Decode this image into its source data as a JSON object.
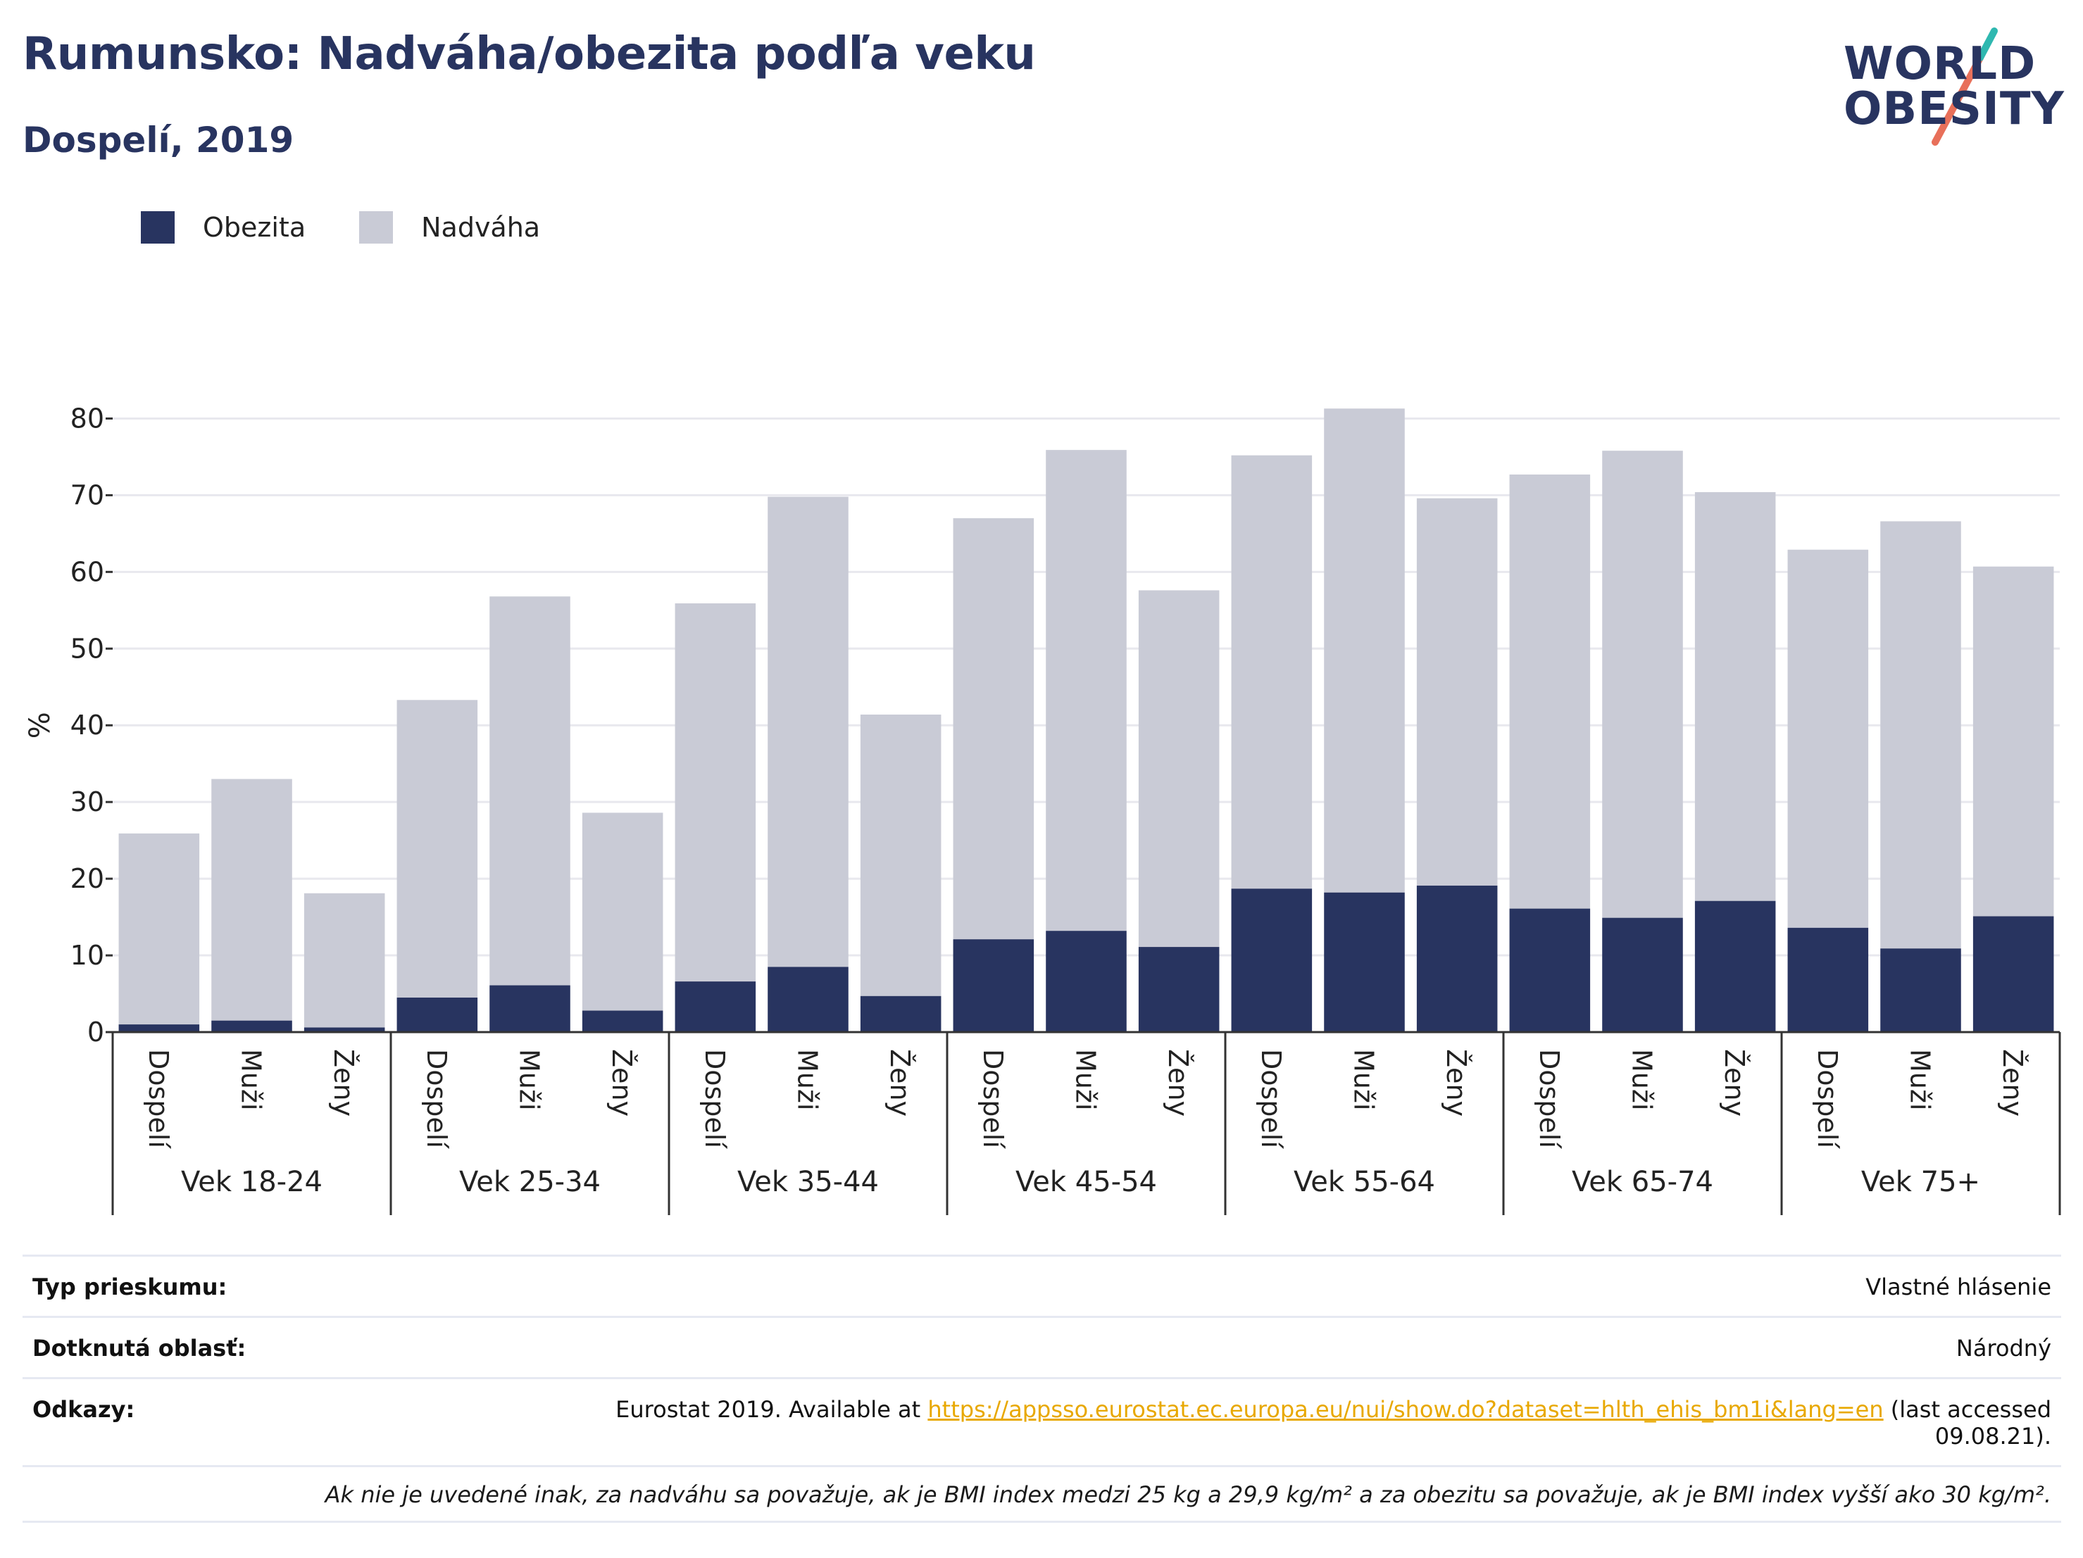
{
  "header": {
    "title": "Rumunsko: Nadváha/obezita podľa veku",
    "subtitle": "Dospelí, 2019"
  },
  "logo": {
    "line1": "WORLD",
    "line2": "OBESITY"
  },
  "colors": {
    "obesity": "#283460",
    "overweight": "#c9cbd6",
    "title": "#283460",
    "link": "#e8a800"
  },
  "legend": [
    {
      "label": "Obezita",
      "color": "#283460"
    },
    {
      "label": "Nadváha",
      "color": "#c9cbd6"
    }
  ],
  "chart_data": {
    "type": "bar",
    "stacked": true,
    "ylabel": "%",
    "ylim": [
      0,
      85
    ],
    "yticks": [
      0,
      10,
      20,
      30,
      40,
      50,
      60,
      70,
      80
    ],
    "grid": true,
    "legend_position": "top-left",
    "groups": [
      "Vek 18-24",
      "Vek 25-34",
      "Vek 35-44",
      "Vek 45-54",
      "Vek 55-64",
      "Vek 65-74",
      "Vek 75+"
    ],
    "categories": [
      "Dospelí",
      "Muži",
      "Ženy"
    ],
    "series": [
      {
        "name": "Obezita",
        "values": [
          [
            1.0,
            1.5,
            0.6
          ],
          [
            4.5,
            6.1,
            2.8
          ],
          [
            6.6,
            8.5,
            4.7
          ],
          [
            12.1,
            13.2,
            11.1
          ],
          [
            18.7,
            18.2,
            19.1
          ],
          [
            16.1,
            14.9,
            17.1
          ],
          [
            13.6,
            10.9,
            15.1
          ]
        ]
      },
      {
        "name": "Nadváha",
        "totals": [
          [
            25.9,
            33.0,
            18.1
          ],
          [
            43.3,
            56.8,
            28.6
          ],
          [
            55.9,
            69.8,
            41.4
          ],
          [
            67.0,
            75.9,
            57.6
          ],
          [
            75.2,
            81.3,
            69.6
          ],
          [
            72.7,
            75.8,
            70.4
          ],
          [
            62.9,
            66.6,
            60.7
          ]
        ]
      }
    ]
  },
  "info": {
    "survey_type_label": "Typ prieskumu:",
    "survey_type_value": "Vlastné hlásenie",
    "area_label": "Dotknutá oblasť:",
    "area_value": "Národný",
    "refs_label": "Odkazy:",
    "refs_prefix": "Eurostat 2019. Available at ",
    "refs_link": "https://appsso.eurostat.ec.europa.eu/nui/show.do?dataset=hlth_ehis_bm1i&lang=en",
    "refs_suffix": " (last accessed",
    "refs_date": "09.08.21).",
    "note": "Ak nie je uvedené inak, za nadváhu sa považuje, ak je BMI index medzi 25 kg a 29,9 kg/m² a za obezitu sa považuje, ak je BMI index vyšší ako 30 kg/m²."
  }
}
